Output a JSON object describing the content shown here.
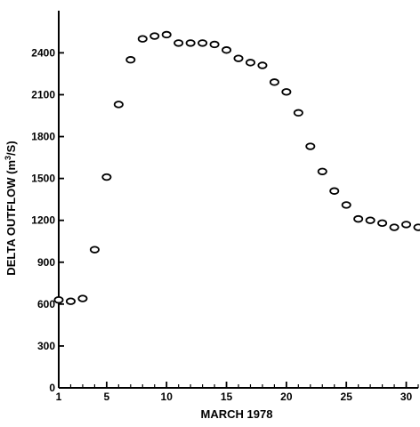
{
  "chart_data": {
    "type": "scatter",
    "title": "",
    "xlabel": "MARCH 1978",
    "ylabel": "DELTA OUTFLOW (m³/S)",
    "ylabel_parts": [
      "DELTA OUTFLOW (m",
      "3",
      "/S)"
    ],
    "xlim": [
      1,
      31
    ],
    "ylim": [
      0,
      2600
    ],
    "x_ticks": [
      1,
      5,
      10,
      15,
      20,
      25,
      30
    ],
    "y_ticks": [
      0,
      300,
      600,
      900,
      1200,
      1500,
      1800,
      2100,
      2400
    ],
    "grid": false,
    "legend": "none",
    "marker": "open-ellipse",
    "color": "#000000",
    "series": [
      {
        "x": [
          1,
          2,
          3,
          4,
          5,
          6,
          7,
          8,
          9,
          10,
          11,
          12,
          13,
          14,
          15,
          16,
          17,
          18,
          19,
          20,
          21,
          22,
          23,
          24,
          25,
          26,
          27,
          28,
          29,
          30,
          31
        ],
        "y": [
          630,
          620,
          640,
          990,
          1510,
          2030,
          2350,
          2500,
          2520,
          2530,
          2470,
          2470,
          2470,
          2460,
          2420,
          2360,
          2330,
          2310,
          2190,
          2120,
          1970,
          1730,
          1550,
          1410,
          1310,
          1210,
          1200,
          1180,
          1150,
          1170,
          1150
        ]
      }
    ]
  }
}
